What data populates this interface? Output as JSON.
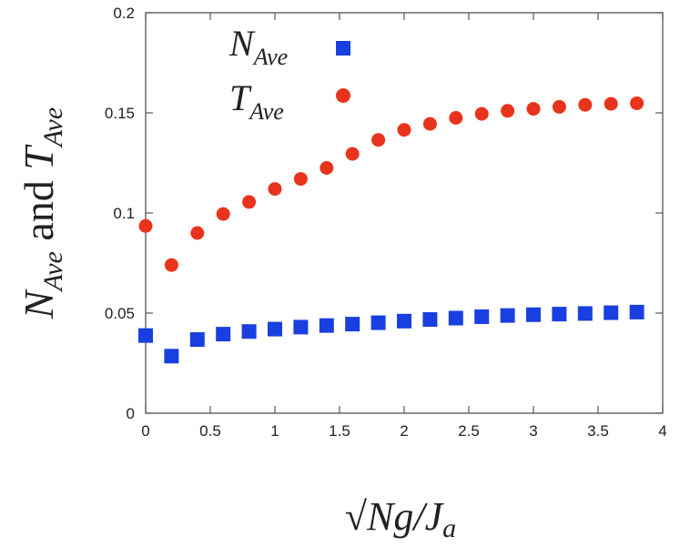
{
  "chart_data": {
    "type": "scatter",
    "title": "",
    "xlabel": "√Ng/J",
    "xlabel_subscript": "a",
    "ylabel_n": "N",
    "ylabel_sub": "Ave",
    "ylabel_and": " and ",
    "ylabel_t": "T",
    "xlim": [
      0,
      4
    ],
    "ylim": [
      0,
      0.2
    ],
    "xticks": [
      "0",
      "0.5",
      "1",
      "1.5",
      "2",
      "2.5",
      "3",
      "3.5",
      "4"
    ],
    "yticks": [
      "0",
      "0.05",
      "0.1",
      "0.15",
      "0.2"
    ],
    "x": [
      0,
      0.2,
      0.4,
      0.6,
      0.8,
      1.0,
      1.2,
      1.4,
      1.6,
      1.8,
      2.0,
      2.2,
      2.4,
      2.6,
      2.8,
      3.0,
      3.2,
      3.4,
      3.6,
      3.8
    ],
    "legend_position": "top-center",
    "series": [
      {
        "name": "N",
        "name_sub": "Ave",
        "marker": "square",
        "color": "#1a3fe0",
        "values": [
          0.0388,
          0.0285,
          0.0368,
          0.0395,
          0.0408,
          0.042,
          0.043,
          0.0438,
          0.0445,
          0.0452,
          0.046,
          0.0468,
          0.0475,
          0.0482,
          0.0488,
          0.0492,
          0.0495,
          0.0498,
          0.0502,
          0.0505
        ]
      },
      {
        "name": "T",
        "name_sub": "Ave",
        "marker": "circle",
        "color": "#e8341c",
        "values": [
          0.0935,
          0.074,
          0.09,
          0.0995,
          0.1055,
          0.112,
          0.117,
          0.1225,
          0.1295,
          0.1365,
          0.1415,
          0.1445,
          0.1475,
          0.1495,
          0.151,
          0.152,
          0.153,
          0.154,
          0.1545,
          0.1548
        ]
      }
    ]
  }
}
